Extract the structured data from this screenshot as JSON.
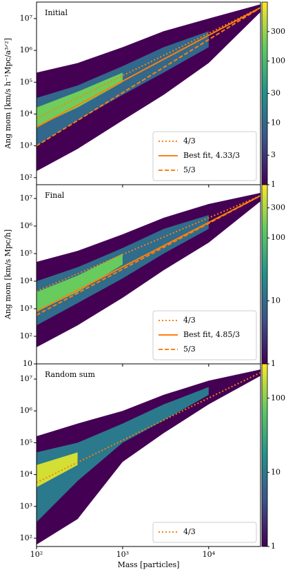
{
  "chart_data": [
    {
      "type": "hist2d",
      "label": "Initial",
      "ylabel": "Ang mom [km/s h⁻¹Mpc/a³ᐟ²]",
      "xlog": true,
      "ylog": true,
      "xlim": [
        100,
        40000
      ],
      "ylim": [
        60,
        33000000
      ],
      "yticks": [
        {
          "value": 100,
          "label": "10²"
        },
        {
          "value": 1000,
          "label": "10³"
        },
        {
          "value": 10000,
          "label": "10⁴"
        },
        {
          "value": 100000,
          "label": "10⁵"
        },
        {
          "value": 1000000,
          "label": "10⁶"
        },
        {
          "value": 10000000,
          "label": "10⁷"
        }
      ],
      "colorbar": {
        "lim": [
          1,
          900
        ],
        "ticks": [
          1,
          3,
          10,
          30,
          100,
          300
        ]
      },
      "density": [
        {
          "level": 1,
          "x": [
            100,
            300,
            1000,
            3000,
            10000,
            40000
          ],
          "low": [
            160,
            800,
            6300,
            40000,
            400000,
            16000000
          ],
          "high": [
            200000,
            400000,
            1260000,
            4000000,
            10000000,
            28000000
          ]
        },
        {
          "level": 10,
          "x": [
            100,
            300,
            1000,
            3000,
            10000
          ],
          "low": [
            1000,
            6300,
            40000,
            200000,
            1260000
          ],
          "high": [
            32000,
            79000,
            320000,
            1260000,
            4000000
          ]
        },
        {
          "level": 200,
          "x": [
            100,
            300,
            1000
          ],
          "low": [
            4000,
            16000,
            100000
          ],
          "high": [
            16000,
            50000,
            200000
          ]
        }
      ],
      "line_x": [
        100,
        40000
      ],
      "series": [
        {
          "name": "4/3",
          "color": "#ff7f0e",
          "dash": "dotted",
          "values": [
            7400,
            22000000
          ]
        },
        {
          "name": "Best fit, 4.33/3",
          "color": "#ff7f0e",
          "dash": "solid",
          "values": [
            3900,
            22000000
          ]
        },
        {
          "name": "5/3",
          "color": "#ff7f0e",
          "dash": "dashed",
          "values": [
            1000,
            22000000
          ]
        }
      ],
      "legend": "lower right"
    },
    {
      "type": "hist2d",
      "label": "Final",
      "ylabel": "Ang mom [km/s Mpc/h]",
      "xlog": true,
      "ylog": true,
      "xlim": [
        100,
        40000
      ],
      "ylim": [
        10,
        31600000
      ],
      "yticks": [
        10,
        {
          "value": 100,
          "label": "10²"
        },
        {
          "value": 1000,
          "label": "10³"
        },
        {
          "value": 10000,
          "label": "10⁴"
        },
        {
          "value": 100000,
          "label": "10⁵"
        },
        {
          "value": 1000000,
          "label": "10⁶"
        },
        {
          "value": 10000000,
          "label": "10⁷"
        }
      ],
      "colorbar": {
        "lim": [
          1,
          700
        ],
        "ticks": [
          1,
          10,
          100,
          300
        ]
      },
      "density": [
        {
          "level": 1,
          "x": [
            100,
            300,
            1000,
            3000,
            10000,
            40000
          ],
          "low": [
            40,
            250,
            2500,
            25000,
            250000,
            7900000
          ],
          "high": [
            50000,
            126000,
            500000,
            2000000,
            6300000,
            16000000
          ]
        },
        {
          "level": 10,
          "x": [
            100,
            300,
            1000,
            3000,
            10000
          ],
          "low": [
            250,
            1600,
            12600,
            100000,
            790000
          ],
          "high": [
            10000,
            32000,
            160000,
            790000,
            2500000
          ]
        },
        {
          "level": 150,
          "x": [
            100,
            300,
            1000
          ],
          "low": [
            800,
            4000,
            40000
          ],
          "high": [
            4000,
            16000,
            100000
          ]
        }
      ],
      "line_x": [
        100,
        40000
      ],
      "series": [
        {
          "name": "4/3",
          "color": "#ff7f0e",
          "dash": "dotted",
          "values": [
            4300,
            12600000
          ]
        },
        {
          "name": "Best fit, 4.85/3",
          "color": "#ff7f0e",
          "dash": "solid",
          "values": [
            800,
            12600000
          ]
        },
        {
          "name": "5/3",
          "color": "#ff7f0e",
          "dash": "dashed",
          "values": [
            590,
            12600000
          ]
        }
      ],
      "legend": "lower right"
    },
    {
      "type": "hist2d",
      "label": "Random sum",
      "xlabel": "Mass [particles]",
      "xlog": true,
      "ylog": true,
      "xlim": [
        100,
        40000
      ],
      "ylim": [
        55,
        30000000
      ],
      "xticks": [
        {
          "value": 100,
          "label": "10²"
        },
        {
          "value": 1000,
          "label": "10³"
        },
        {
          "value": 10000,
          "label": "10⁴"
        }
      ],
      "yticks": [
        {
          "value": 100,
          "label": "10²"
        },
        {
          "value": 1000,
          "label": "10³"
        },
        {
          "value": 10000,
          "label": "10⁴"
        },
        {
          "value": 100000,
          "label": "10⁵"
        },
        {
          "value": 1000000,
          "label": "10⁶"
        },
        {
          "value": 10000000,
          "label": "10⁷"
        }
      ],
      "colorbar": {
        "lim": [
          1,
          290
        ],
        "ticks": [
          1,
          10,
          100
        ]
      },
      "density": [
        {
          "level": 1,
          "x": [
            100,
            300,
            1000,
            3000,
            10000,
            40000
          ],
          "low": [
            63,
            400,
            25000,
            200000,
            1600000,
            12600000
          ],
          "high": [
            160000,
            400000,
            1000000,
            3200000,
            8900000,
            20000000
          ]
        },
        {
          "level": 10,
          "x": [
            100,
            300,
            1000,
            3000,
            10000
          ],
          "low": [
            320,
            6300,
            100000,
            500000,
            3200000
          ],
          "high": [
            50000,
            100000,
            400000,
            1600000,
            5600000
          ]
        },
        {
          "level": 200,
          "x": [
            100,
            300
          ],
          "low": [
            4000,
            20000
          ],
          "high": [
            20000,
            50000
          ]
        }
      ],
      "line_x": [
        100,
        40000
      ],
      "series": [
        {
          "name": "4/3",
          "color": "#ff7f0e",
          "dash": "dotted",
          "values": [
            5600,
            16000000
          ]
        }
      ],
      "legend": "lower right"
    }
  ]
}
